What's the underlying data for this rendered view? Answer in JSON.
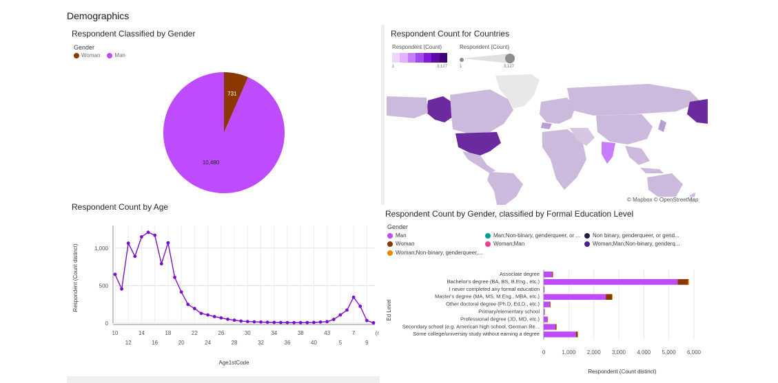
{
  "page": {
    "title": "Demographics"
  },
  "gender_pie": {
    "title": "Respondent Classified by Gender",
    "legend_title": "Gender",
    "legend": [
      {
        "name": "Woman",
        "color": "#8a3800"
      },
      {
        "name": "Man",
        "color": "#be4bff"
      }
    ]
  },
  "country_map": {
    "title": "Respondent Count for Countries",
    "color_scale": {
      "label": "Respondent (Count)",
      "min": "1",
      "max": "3,127"
    },
    "size_scale": {
      "label": "Respondent (Count)",
      "min": "1",
      "max": "3,127"
    },
    "attribution": "© Mapbox © OpenStreetMap"
  },
  "age_line": {
    "title": "Respondent Count by Age"
  },
  "education_bar": {
    "title": "Respondent Count by Gender, classified by Formal Education Level",
    "legend_title": "Gender",
    "legend": [
      {
        "name": "Man",
        "color": "#be4bff"
      },
      {
        "name": "Man;Non-binary, genderqueer, or ...",
        "color": "#009d9a"
      },
      {
        "name": "Non binary, genderqueer, or gend...",
        "color": "#1c1f3b"
      },
      {
        "name": "Woman",
        "color": "#8a3800"
      },
      {
        "name": "Woman;Man",
        "color": "#ee3d96"
      },
      {
        "name": "Woman;Man;Non-binary, genderq...",
        "color": "#4c1d95"
      },
      {
        "name": "Woman;Non-binary, genderqueer,...",
        "color": "#e58a00"
      }
    ]
  },
  "chart_data": [
    {
      "type": "pie",
      "title": "Respondent Classified by Gender",
      "categories": [
        "Woman",
        "Man"
      ],
      "values": [
        731,
        10480
      ],
      "labels": [
        "731",
        "10,480"
      ],
      "colors": [
        "#8a3800",
        "#be4bff"
      ],
      "legend": "top-left"
    },
    {
      "type": "line",
      "title": "Respondent Count by Age",
      "xlabel": "Age1stCode",
      "ylabel": "Respondent (Count distinct)",
      "ylim": [
        0,
        1300
      ],
      "y_ticks": [
        "0",
        "500",
        "1,000"
      ],
      "x_tick_labels_top": [
        "10",
        "14",
        "18",
        "22",
        "26",
        "30",
        "34",
        "38",
        "43",
        "7",
        "(n..."
      ],
      "x_tick_labels_bottom": [
        "12",
        "16",
        "20",
        "24",
        "28",
        "32",
        "36",
        "40",
        "5",
        "9"
      ],
      "values": [
        650,
        455,
        1065,
        890,
        1150,
        1210,
        1170,
        790,
        1070,
        610,
        415,
        250,
        195,
        130,
        110,
        88,
        70,
        52,
        40,
        28,
        22,
        18,
        15,
        12,
        10,
        9,
        8,
        7,
        7,
        8,
        10,
        15,
        20,
        50,
        110,
        175,
        345,
        225,
        35,
        5
      ],
      "grid": true,
      "color": "#7b0ecc"
    },
    {
      "type": "bar",
      "orientation": "horizontal",
      "stacked": true,
      "title": "Respondent Count by Gender, classified by Formal Education Level",
      "xlabel": "Respondent (Count distinct)",
      "ylabel": "Ed Level",
      "xlim": [
        0,
        6000
      ],
      "x_ticks": [
        "0",
        "1,000",
        "2,000",
        "3,000",
        "4,000",
        "5,000",
        "6,000"
      ],
      "categories": [
        "Associate degree",
        "Bachelor's degree (BA, BS, B.Eng., etc.)",
        "I never completed any formal education",
        "Master's degree (MA, MS, M.Eng., MBA, etc.)",
        "Other doctoral degree (Ph.D, Ed.D., etc.)",
        "Primary/elementary school",
        "Professional degree (JD, MD, etc.)",
        "Secondary school (e.g. American high school, German Re...",
        "Some college/university study without earning a degree"
      ],
      "series": [
        {
          "name": "Man",
          "color": "#be4bff",
          "values": [
            340,
            5350,
            15,
            2480,
            240,
            25,
            140,
            470,
            1290
          ]
        },
        {
          "name": "Woman",
          "color": "#8a3800",
          "values": [
            25,
            420,
            2,
            250,
            20,
            2,
            15,
            35,
            65
          ]
        },
        {
          "name": "Woman;Non-binary, genderqueer,...",
          "color": "#e58a00",
          "values": [
            3,
            30,
            0,
            20,
            2,
            0,
            1,
            3,
            6
          ]
        }
      ],
      "legend": "top"
    }
  ]
}
